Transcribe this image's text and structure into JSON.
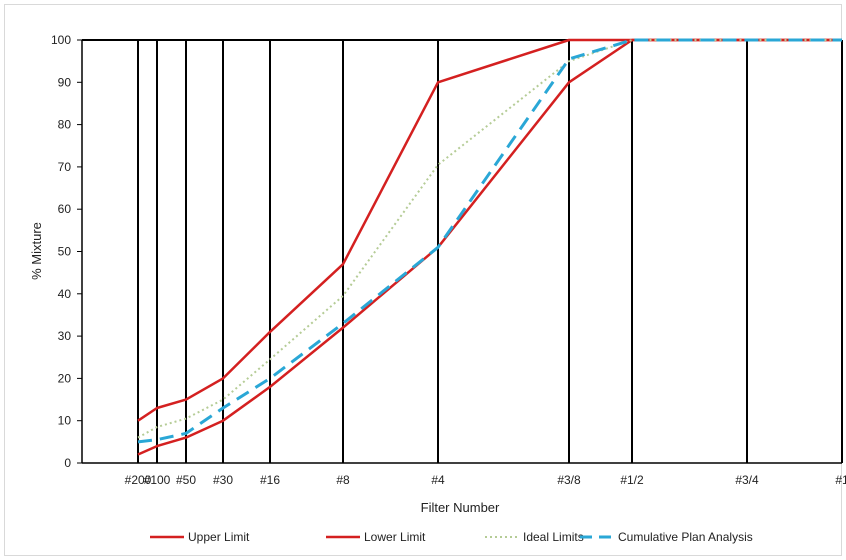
{
  "chart_data": {
    "type": "line",
    "title": "",
    "xlabel": "Filter Number",
    "ylabel": "% Mixture",
    "ylim": [
      0,
      100
    ],
    "y_ticks": [
      0,
      10,
      20,
      30,
      40,
      50,
      60,
      70,
      80,
      90,
      100
    ],
    "grid": "vertical lines at sieve sizes",
    "legend_position": "bottom",
    "categories": [
      "#200",
      "#100",
      "#50",
      "#30",
      "#16",
      "#8",
      "#4",
      "#3/8",
      "#1/2",
      "#3/4",
      "#1"
    ],
    "series": [
      {
        "name": "Upper Limit",
        "color": "#d42020",
        "style": "solid",
        "values": [
          10,
          13,
          15,
          20,
          31,
          47,
          90,
          100,
          100,
          100,
          100
        ]
      },
      {
        "name": "Lower Limit",
        "color": "#d42020",
        "style": "solid",
        "values": [
          2,
          4,
          6,
          10,
          18,
          32,
          51,
          90,
          100,
          100,
          100
        ]
      },
      {
        "name": "Ideal Limits",
        "color": "#b5cc96",
        "style": "dotted",
        "values": [
          6,
          8.5,
          10.5,
          15,
          24.5,
          39.5,
          70.5,
          95,
          100,
          100,
          100
        ]
      },
      {
        "name": "Cumulative Plan Analysis",
        "color": "#2aa7d6",
        "style": "dashed",
        "values": [
          5,
          5.5,
          7,
          13,
          20,
          33,
          51,
          95.5,
          100,
          100,
          100
        ]
      }
    ]
  }
}
